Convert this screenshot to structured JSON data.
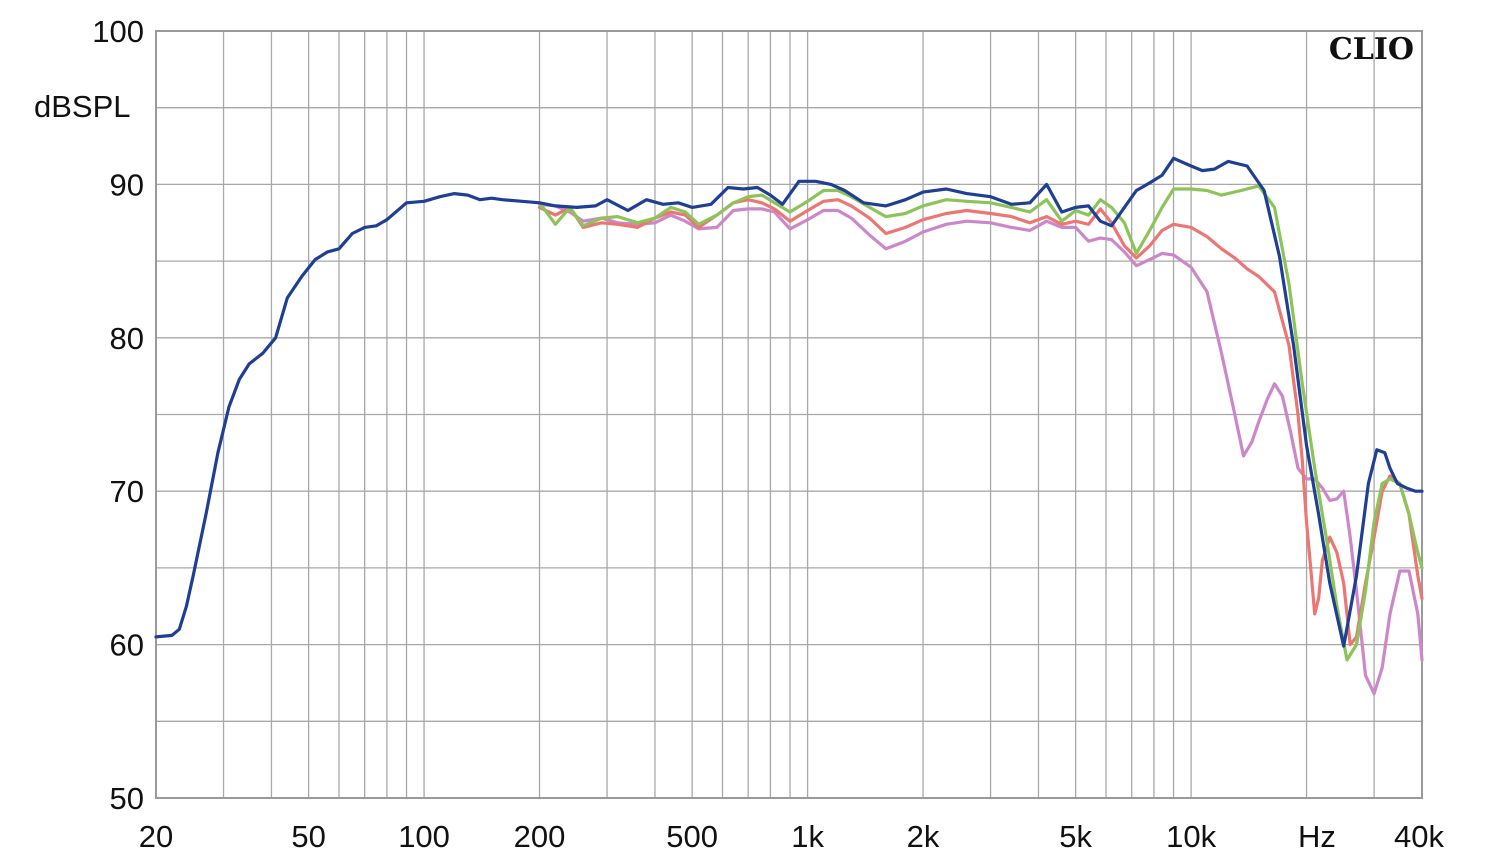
{
  "chart_data": {
    "type": "line",
    "brand": "CLIO",
    "ylabel": "dBSPL",
    "xunit": "Hz",
    "xscale": "log",
    "xlim": [
      20,
      40000
    ],
    "ylim": [
      50,
      100
    ],
    "grid": true,
    "y_ticks": [
      {
        "value": 100,
        "label": "100"
      },
      {
        "value": 90,
        "label": "90"
      },
      {
        "value": 80,
        "label": "80"
      },
      {
        "value": 70,
        "label": "70"
      },
      {
        "value": 60,
        "label": "60"
      },
      {
        "value": 50,
        "label": "50"
      }
    ],
    "x_ticks": [
      {
        "value": 20,
        "label": "20"
      },
      {
        "value": 50,
        "label": "50"
      },
      {
        "value": 100,
        "label": "100"
      },
      {
        "value": 200,
        "label": "200"
      },
      {
        "value": 500,
        "label": "500"
      },
      {
        "value": 1000,
        "label": "1k"
      },
      {
        "value": 2000,
        "label": "2k"
      },
      {
        "value": 5000,
        "label": "5k"
      },
      {
        "value": 10000,
        "label": "10k"
      },
      {
        "value": 40000,
        "label": "40k"
      }
    ],
    "series": [
      {
        "color": "#1f3f95",
        "x": [
          20,
          22,
          23,
          24,
          25,
          27,
          29,
          31,
          33,
          35,
          38,
          41,
          44,
          48,
          52,
          56,
          60,
          65,
          70,
          75,
          80,
          90,
          100,
          110,
          120,
          130,
          140,
          150,
          160,
          180,
          200,
          220,
          250,
          280,
          300,
          340,
          380,
          420,
          460,
          500,
          560,
          620,
          680,
          740,
          800,
          860,
          950,
          1050,
          1150,
          1250,
          1400,
          1600,
          1800,
          2000,
          2300,
          2600,
          3000,
          3400,
          3800,
          4200,
          4600,
          5000,
          5400,
          5800,
          6200,
          6700,
          7200,
          7800,
          8400,
          9000,
          10000,
          10700,
          11500,
          12500,
          14000,
          15500,
          17000,
          18500,
          20000,
          21500,
          23000,
          25000,
          27000,
          29000,
          30500,
          32000,
          33000,
          34500,
          36500,
          38500,
          40000
        ],
        "y": [
          60.5,
          60.6,
          61.0,
          62.5,
          64.5,
          68.5,
          72.5,
          75.5,
          77.3,
          78.3,
          79.0,
          80.0,
          82.6,
          84.0,
          85.1,
          85.6,
          85.8,
          86.8,
          87.2,
          87.3,
          87.7,
          88.8,
          88.9,
          89.2,
          89.4,
          89.3,
          89.0,
          89.1,
          89.0,
          88.9,
          88.8,
          88.6,
          88.5,
          88.6,
          89.0,
          88.3,
          89.0,
          88.7,
          88.8,
          88.5,
          88.7,
          89.8,
          89.7,
          89.8,
          89.3,
          88.7,
          90.2,
          90.2,
          90.0,
          89.6,
          88.8,
          88.6,
          89.0,
          89.5,
          89.7,
          89.4,
          89.2,
          88.7,
          88.8,
          90.0,
          88.2,
          88.5,
          88.6,
          87.6,
          87.3,
          88.5,
          89.6,
          90.1,
          90.6,
          91.7,
          91.2,
          90.9,
          91.0,
          91.5,
          91.2,
          89.6,
          85.3,
          79.5,
          73.0,
          68.5,
          64.0,
          59.9,
          64.5,
          70.5,
          72.7,
          72.5,
          71.5,
          70.5,
          70.2,
          70.0,
          70.0
        ]
      },
      {
        "color": "#8cc45a",
        "x": [
          200,
          220,
          240,
          260,
          290,
          320,
          360,
          400,
          440,
          480,
          520,
          580,
          640,
          700,
          760,
          820,
          900,
          1000,
          1100,
          1200,
          1300,
          1450,
          1600,
          1800,
          2000,
          2300,
          2600,
          3000,
          3400,
          3800,
          4200,
          4600,
          5000,
          5400,
          5800,
          6200,
          6700,
          7200,
          7800,
          8400,
          9000,
          10000,
          11000,
          12000,
          13500,
          15000,
          16500,
          18000,
          19500,
          21000,
          22500,
          24000,
          25500,
          27000,
          28500,
          30000,
          31500,
          33000,
          35000,
          37000,
          39000,
          40000
        ],
        "y": [
          88.8,
          87.4,
          88.5,
          87.3,
          87.8,
          87.9,
          87.5,
          87.8,
          88.5,
          88.2,
          87.4,
          88.0,
          88.8,
          89.2,
          89.3,
          88.8,
          88.2,
          88.9,
          89.6,
          89.6,
          89.2,
          88.5,
          87.9,
          88.1,
          88.6,
          89.0,
          88.9,
          88.8,
          88.5,
          88.2,
          89.0,
          87.6,
          88.3,
          88.0,
          89.0,
          88.5,
          87.5,
          85.5,
          87.0,
          88.5,
          89.7,
          89.7,
          89.6,
          89.3,
          89.6,
          89.9,
          88.5,
          83.5,
          77.0,
          71.5,
          67.0,
          62.5,
          59.0,
          60.0,
          63.5,
          68.0,
          70.5,
          70.8,
          70.5,
          68.5,
          66.0,
          65.0
        ]
      },
      {
        "color": "#ec7673",
        "x": [
          200,
          220,
          240,
          260,
          290,
          320,
          360,
          400,
          440,
          480,
          520,
          580,
          640,
          700,
          760,
          820,
          900,
          1000,
          1100,
          1200,
          1300,
          1450,
          1600,
          1800,
          2000,
          2300,
          2600,
          3000,
          3400,
          3800,
          4200,
          4600,
          5000,
          5400,
          5800,
          6200,
          6700,
          7200,
          7800,
          8400,
          9000,
          10000,
          11000,
          12000,
          13000,
          14000,
          15000,
          16500,
          18000,
          19000,
          19500,
          20000,
          20500,
          21000,
          21500,
          22000,
          23000,
          24000,
          25000,
          26000,
          27000,
          28500,
          30000,
          31500,
          33000,
          35000,
          37000,
          39000,
          40000
        ],
        "y": [
          88.5,
          88.0,
          88.5,
          87.2,
          87.5,
          87.4,
          87.2,
          87.8,
          88.2,
          88.0,
          87.2,
          88.0,
          88.8,
          89.0,
          88.8,
          88.4,
          87.6,
          88.3,
          88.9,
          89.0,
          88.6,
          87.8,
          86.8,
          87.2,
          87.7,
          88.1,
          88.3,
          88.1,
          87.9,
          87.5,
          87.9,
          87.4,
          87.6,
          87.4,
          88.4,
          87.5,
          86.0,
          85.2,
          86.0,
          87.0,
          87.4,
          87.2,
          86.6,
          85.8,
          85.2,
          84.5,
          84.0,
          83.0,
          79.5,
          75.0,
          72.0,
          68.0,
          65.0,
          62.0,
          63.0,
          65.5,
          67.0,
          66.0,
          64.0,
          60.0,
          60.5,
          64.0,
          67.0,
          70.0,
          71.0,
          70.5,
          68.5,
          64.5,
          63.0
        ]
      },
      {
        "color": "#cc87cb",
        "x": [
          200,
          220,
          240,
          260,
          290,
          320,
          360,
          400,
          440,
          480,
          520,
          580,
          640,
          700,
          760,
          820,
          900,
          1000,
          1100,
          1200,
          1300,
          1450,
          1600,
          1800,
          2000,
          2300,
          2600,
          3000,
          3400,
          3800,
          4200,
          4600,
          5000,
          5400,
          5800,
          6200,
          6700,
          7200,
          7800,
          8400,
          9000,
          10000,
          11000,
          12000,
          13000,
          13700,
          14400,
          15000,
          15800,
          16500,
          17300,
          18200,
          19000,
          20000,
          21000,
          22000,
          23000,
          24000,
          25000,
          26000,
          27000,
          28500,
          30000,
          31500,
          33000,
          35000,
          37000,
          39000,
          40000
        ],
        "y": [
          88.7,
          88.6,
          88.2,
          87.6,
          87.8,
          87.5,
          87.4,
          87.5,
          88.0,
          87.6,
          87.1,
          87.2,
          88.3,
          88.4,
          88.4,
          88.2,
          87.1,
          87.7,
          88.3,
          88.3,
          87.8,
          86.7,
          85.8,
          86.3,
          86.9,
          87.4,
          87.6,
          87.5,
          87.2,
          87.0,
          87.6,
          87.2,
          87.2,
          86.3,
          86.5,
          86.4,
          85.6,
          84.7,
          85.1,
          85.5,
          85.4,
          84.6,
          83.0,
          79.0,
          75.0,
          72.3,
          73.2,
          74.5,
          76.0,
          77.0,
          76.2,
          73.8,
          71.5,
          70.8,
          70.8,
          70.2,
          69.4,
          69.5,
          70.0,
          67.0,
          63.5,
          58.0,
          56.8,
          58.5,
          62.0,
          64.8,
          64.8,
          62.0,
          59.0
        ]
      }
    ]
  }
}
